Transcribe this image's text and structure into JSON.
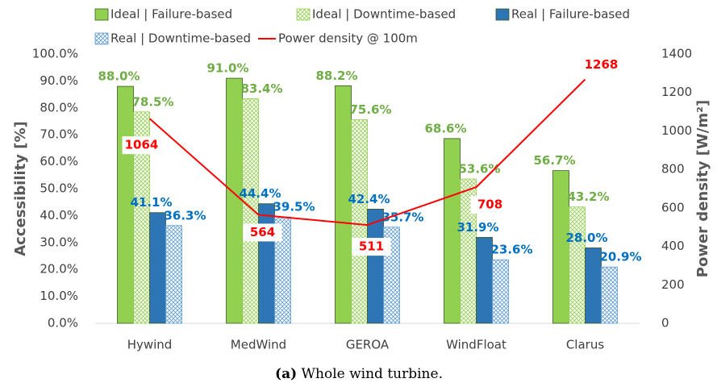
{
  "chart_data": {
    "type": "bar",
    "caption_label": "(a)",
    "caption": "Whole wind turbine.",
    "ylabel": "Accessibility [%]",
    "y2label": "Power density [W/m²]",
    "categories": [
      "Hywind",
      "MedWind",
      "GEROA",
      "WindFloat",
      "Clarus"
    ],
    "series": [
      {
        "name": "Ideal | Failure-based",
        "color": "#92d050",
        "hatch": false,
        "label_color": "#70ad47",
        "values": [
          88.0,
          91.0,
          88.2,
          68.6,
          56.7
        ],
        "value_labels": [
          "88.0%",
          "91.0%",
          "88.2%",
          "68.6%",
          "56.7%"
        ]
      },
      {
        "name": "Ideal | Downtime-based",
        "color": "#92d050",
        "hatch": true,
        "label_color": "#70ad47",
        "values": [
          78.5,
          83.4,
          75.6,
          53.6,
          43.2
        ],
        "value_labels": [
          "78.5%",
          "83.4%",
          "75.6%",
          "53.6%",
          "43.2%"
        ]
      },
      {
        "name": "Real | Failure-based",
        "color": "#2e75b6",
        "hatch": false,
        "label_color": "#0070c0",
        "values": [
          41.1,
          44.4,
          42.4,
          31.9,
          28.0
        ],
        "value_labels": [
          "41.1%",
          "44.4%",
          "42.4%",
          "31.9%",
          "28.0%"
        ]
      },
      {
        "name": "Real | Downtime-based",
        "color": "#5b9bd5",
        "hatch": true,
        "label_color": "#0070c0",
        "values": [
          36.3,
          39.5,
          35.7,
          23.6,
          20.9
        ],
        "value_labels": [
          "36.3%",
          "39.5%",
          "35.7%",
          "23.6%",
          "20.9%"
        ]
      },
      {
        "name": "Power density @ 100m",
        "type": "line",
        "axis": "y2",
        "color": "#ff0000",
        "label_color": "#ff0000",
        "values": [
          1064,
          564,
          511,
          708,
          1268
        ]
      }
    ],
    "ylim": [
      0,
      100
    ],
    "yticks": [
      {
        "value": 0,
        "label": "0.0%"
      },
      {
        "value": 10,
        "label": "10.0%"
      },
      {
        "value": 20,
        "label": "20.0%"
      },
      {
        "value": 30,
        "label": "30.0%"
      },
      {
        "value": 40,
        "label": "40.0%"
      },
      {
        "value": 50,
        "label": "50.0%"
      },
      {
        "value": 60,
        "label": "60.0%"
      },
      {
        "value": 70,
        "label": "70.0%"
      },
      {
        "value": 80,
        "label": "80.0%"
      },
      {
        "value": 90,
        "label": "90.0%"
      },
      {
        "value": 100,
        "label": "100.0%"
      }
    ],
    "y2lim": [
      0,
      1400
    ],
    "y2ticks": [
      0,
      200,
      400,
      600,
      800,
      1000,
      1200,
      1400
    ],
    "grid": false
  }
}
